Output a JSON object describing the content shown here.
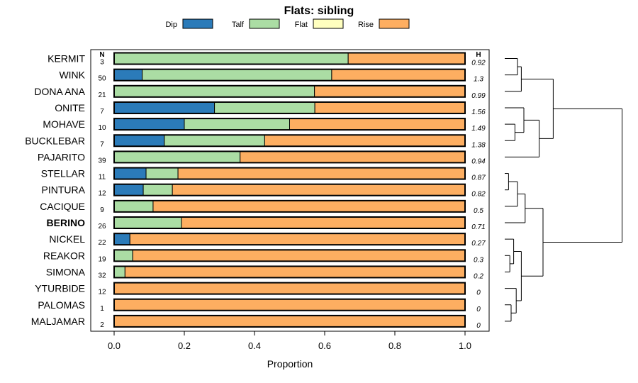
{
  "chart_data": {
    "type": "bar",
    "orientation": "horizontal",
    "stacked": true,
    "title": "Flats: sibling",
    "xlabel": "Proportion",
    "xlim": [
      0,
      1
    ],
    "xticks": [
      "0.0",
      "0.2",
      "0.4",
      "0.6",
      "0.8",
      "1.0"
    ],
    "xtick_values": [
      0,
      0.2,
      0.4,
      0.6,
      0.8,
      1.0
    ],
    "n_header": "N",
    "h_header": "H",
    "legend": [
      {
        "name": "Dip",
        "color": "#2b7bb9"
      },
      {
        "name": "Talf",
        "color": "#abdda4"
      },
      {
        "name": "Flat",
        "color": "#ffffbf"
      },
      {
        "name": "Rise",
        "color": "#fdae61"
      }
    ],
    "categories": [
      "KERMIT",
      "WINK",
      "DONA ANA",
      "ONITE",
      "MOHAVE",
      "BUCKLEBAR",
      "PAJARITO",
      "STELLAR",
      "PINTURA",
      "CACIQUE",
      "BERINO",
      "NICKEL",
      "REAKOR",
      "SIMONA",
      "YTURBIDE",
      "PALOMAS",
      "MALJAMAR"
    ],
    "bold_categories": [
      "BERINO"
    ],
    "n": [
      "3",
      "50",
      "21",
      "7",
      "10",
      "7",
      "39",
      "11",
      "12",
      "9",
      "26",
      "22",
      "19",
      "32",
      "12",
      "1",
      "2"
    ],
    "h": [
      "0.92",
      "1.3",
      "0.99",
      "1.56",
      "1.49",
      "1.38",
      "0.94",
      "0.87",
      "0.82",
      "0.5",
      "0.71",
      "0.27",
      "0.3",
      "0.2",
      "0",
      "0",
      "0"
    ],
    "series": [
      {
        "name": "Dip",
        "values": [
          0,
          0.08,
          0,
          0.286,
          0.2,
          0.143,
          0,
          0.091,
          0.083,
          0,
          0,
          0.045,
          0,
          0,
          0,
          0,
          0
        ]
      },
      {
        "name": "Talf",
        "values": [
          0.667,
          0.54,
          0.571,
          0.286,
          0.3,
          0.286,
          0.359,
          0.091,
          0.083,
          0.111,
          0.192,
          0,
          0.053,
          0.031,
          0,
          0,
          0
        ]
      },
      {
        "name": "Flat",
        "values": [
          0,
          0,
          0,
          0,
          0,
          0,
          0,
          0,
          0,
          0,
          0,
          0,
          0,
          0,
          0,
          0,
          0
        ]
      },
      {
        "name": "Rise",
        "values": [
          0.333,
          0.38,
          0.429,
          0.428,
          0.5,
          0.571,
          0.641,
          0.818,
          0.834,
          0.889,
          0.808,
          0.955,
          0.947,
          0.969,
          1,
          1,
          1
        ]
      }
    ],
    "dendrogram": {
      "description": "Hierarchical clustering of rows (0-based row indices); height is relative merge distance (0..1).",
      "merges": [
        {
          "a": 0,
          "b": 1,
          "height": 0.1
        },
        {
          "a": "m0",
          "b": 2,
          "height": 0.13
        },
        {
          "a": 4,
          "b": 5,
          "height": 0.08
        },
        {
          "a": 3,
          "b": "m2",
          "height": 0.15
        },
        {
          "a": "m3",
          "b": 6,
          "height": 0.27
        },
        {
          "a": "m1",
          "b": "m4",
          "height": 0.38
        },
        {
          "a": 7,
          "b": 8,
          "height": 0.03
        },
        {
          "a": "m6",
          "b": 9,
          "height": 0.1
        },
        {
          "a": "m7",
          "b": 10,
          "height": 0.16
        },
        {
          "a": 12,
          "b": 13,
          "height": 0.04
        },
        {
          "a": 11,
          "b": "m9",
          "height": 0.07
        },
        {
          "a": 15,
          "b": 16,
          "height": 0.05
        },
        {
          "a": 14,
          "b": "m11",
          "height": 0.09
        },
        {
          "a": "m10",
          "b": "m12",
          "height": 0.13
        },
        {
          "a": "m8",
          "b": "m13",
          "height": 0.3
        },
        {
          "a": "m5",
          "b": "m14",
          "height": 0.92
        }
      ]
    }
  }
}
